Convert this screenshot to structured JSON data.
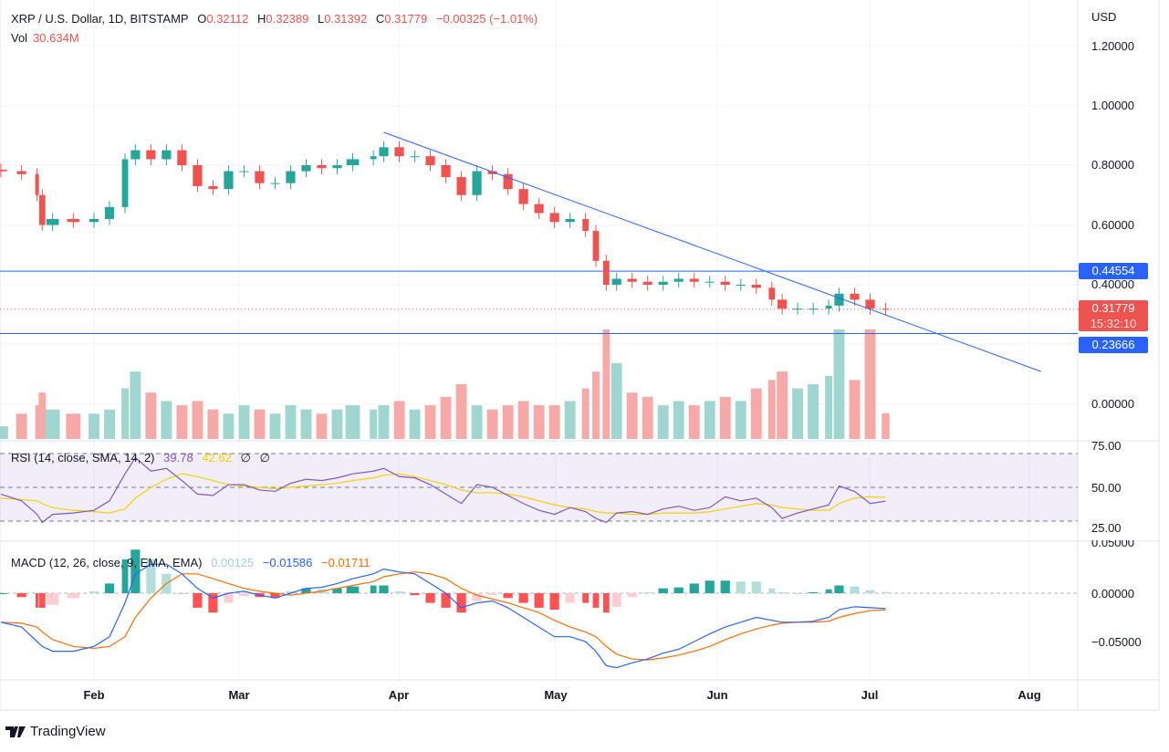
{
  "header": {
    "symbol": "XRP / U.S. Dollar, 1D, BITSTAMP",
    "o_label": "O",
    "open": "0.32112",
    "h_label": "H",
    "high": "0.32389",
    "l_label": "L",
    "low": "0.31392",
    "c_label": "C",
    "close": "0.31779",
    "change": "−0.00325 (−1.01%)",
    "vol_label": "Vol",
    "volume": "30.634M"
  },
  "rsi_legend": {
    "label": "RSI (14, close, SMA, 14, 2)",
    "rsi": "39.78",
    "sma": "42.62",
    "x1": "∅",
    "x2": "∅"
  },
  "macd_legend": {
    "label": "MACD (12, 26, close, 9, EMA, EMA)",
    "hist": "0.00125",
    "macd": "−0.01586",
    "signal": "−0.01711"
  },
  "price_axis": {
    "currency": "USD",
    "ticks": [
      "1.20000",
      "1.00000",
      "0.80000",
      "0.60000",
      "0.40000",
      "0.00000"
    ]
  },
  "price_tags": {
    "resistance": "0.44554",
    "last": "0.31779",
    "countdown": "15:32:10",
    "support": "0.23666"
  },
  "rsi_axis": [
    "75.00",
    "50.00",
    "25.00"
  ],
  "macd_axis": [
    "0.05000",
    "0.00000",
    "−0.05000"
  ],
  "time_axis": [
    "Feb",
    "Mar",
    "Apr",
    "May",
    "Jun",
    "Jul",
    "Aug"
  ],
  "brand": "TradingView",
  "colors": {
    "up": "#26a69a",
    "down": "#ef5350",
    "line": "#2962ff",
    "rsi": "#7e57c2",
    "rsi_sma": "#f5d000",
    "macd": "#2962ff",
    "signal": "#ff6d00"
  },
  "chart_data": {
    "type": "candlestick",
    "ylim": [
      0,
      1.2
    ],
    "dates": [
      "Jan 14",
      "Jan 18",
      "Jan 21",
      "Jan 22",
      "Jan 24",
      "Jan 28",
      "Feb 1",
      "Feb 4",
      "Feb 7",
      "Feb 9",
      "Feb 12",
      "Feb 15",
      "Feb 18",
      "Feb 21",
      "Feb 24",
      "Feb 27",
      "Mar 2",
      "Mar 5",
      "Mar 8",
      "Mar 11",
      "Mar 14",
      "Mar 17",
      "Mar 20",
      "Mar 23",
      "Mar 27",
      "Mar 29",
      "Apr 1",
      "Apr 4",
      "Apr 7",
      "Apr 10",
      "Apr 13",
      "Apr 16",
      "Apr 19",
      "Apr 22",
      "Apr 25",
      "Apr 28",
      "May 1",
      "May 4",
      "May 7",
      "May 9",
      "May 11",
      "May 13",
      "May 16",
      "May 19",
      "May 22",
      "May 25",
      "May 28",
      "May 31",
      "Jun 3",
      "Jun 6",
      "Jun 9",
      "Jun 12",
      "Jun 14",
      "Jun 17",
      "Jun 20",
      "Jun 23",
      "Jun 25",
      "Jun 28",
      "Jul 1",
      "Jul 4"
    ],
    "close": [
      0.78,
      0.77,
      0.7,
      0.6,
      0.62,
      0.61,
      0.62,
      0.66,
      0.82,
      0.85,
      0.82,
      0.85,
      0.8,
      0.73,
      0.72,
      0.78,
      0.78,
      0.74,
      0.74,
      0.78,
      0.8,
      0.79,
      0.8,
      0.82,
      0.83,
      0.86,
      0.83,
      0.83,
      0.8,
      0.76,
      0.7,
      0.78,
      0.77,
      0.72,
      0.67,
      0.64,
      0.61,
      0.62,
      0.58,
      0.48,
      0.4,
      0.42,
      0.41,
      0.4,
      0.41,
      0.42,
      0.41,
      0.41,
      0.4,
      0.4,
      0.39,
      0.35,
      0.32,
      0.32,
      0.32,
      0.33,
      0.37,
      0.35,
      0.32,
      0.31779
    ],
    "volume_m": [
      15,
      30,
      40,
      55,
      35,
      30,
      30,
      35,
      60,
      80,
      55,
      45,
      40,
      45,
      35,
      30,
      40,
      35,
      30,
      40,
      35,
      30,
      35,
      40,
      35,
      40,
      45,
      35,
      40,
      50,
      65,
      40,
      35,
      40,
      45,
      40,
      40,
      45,
      60,
      80,
      130,
      90,
      55,
      50,
      40,
      45,
      40,
      45,
      50,
      45,
      60,
      70,
      80,
      60,
      65,
      75,
      130,
      70,
      130,
      30.634
    ],
    "rsi": [
      45,
      40,
      30,
      24,
      30,
      31,
      33,
      40,
      60,
      72,
      62,
      64,
      55,
      45,
      44,
      52,
      52,
      48,
      47,
      53,
      56,
      55,
      57,
      60,
      62,
      64,
      58,
      57,
      52,
      45,
      38,
      52,
      50,
      44,
      38,
      33,
      30,
      35,
      32,
      27,
      24,
      31,
      32,
      30,
      34,
      36,
      33,
      35,
      43,
      40,
      42,
      35,
      27,
      31,
      34,
      37,
      51,
      47,
      38,
      39.78
    ],
    "rsi_sma": [
      42,
      41,
      40,
      38,
      35,
      33,
      32,
      31,
      34,
      42,
      50,
      56,
      60,
      58,
      55,
      52,
      51,
      50,
      49,
      50,
      51,
      52,
      53,
      55,
      57,
      59,
      60,
      58,
      55,
      52,
      48,
      46,
      46,
      45,
      43,
      40,
      37,
      35,
      34,
      32,
      31,
      31,
      30,
      30,
      31,
      31,
      31,
      32,
      34,
      36,
      38,
      37,
      35,
      34,
      33,
      33,
      38,
      42,
      43,
      42.62
    ],
    "macd": [
      -0.03,
      -0.035,
      -0.05,
      -0.055,
      -0.06,
      -0.06,
      -0.055,
      -0.045,
      -0.01,
      0.02,
      0.03,
      0.03,
      0.02,
      0.005,
      -0.005,
      0,
      0.002,
      -0.002,
      -0.005,
      0,
      0.005,
      0.006,
      0.01,
      0.015,
      0.02,
      0.025,
      0.022,
      0.02,
      0.01,
      0,
      -0.015,
      -0.01,
      -0.008,
      -0.015,
      -0.025,
      -0.035,
      -0.045,
      -0.045,
      -0.05,
      -0.06,
      -0.075,
      -0.077,
      -0.072,
      -0.068,
      -0.062,
      -0.058,
      -0.05,
      -0.042,
      -0.035,
      -0.03,
      -0.025,
      -0.028,
      -0.03,
      -0.03,
      -0.029,
      -0.025,
      -0.017,
      -0.014,
      -0.015,
      -0.01586
    ],
    "signal": [
      -0.03,
      -0.031,
      -0.035,
      -0.04,
      -0.048,
      -0.055,
      -0.057,
      -0.055,
      -0.045,
      -0.025,
      -0.005,
      0.01,
      0.02,
      0.02,
      0.015,
      0.01,
      0.005,
      0.002,
      0,
      -0.002,
      0,
      0.002,
      0.005,
      0.008,
      0.012,
      0.017,
      0.02,
      0.022,
      0.02,
      0.015,
      0.005,
      -0.002,
      -0.006,
      -0.01,
      -0.015,
      -0.02,
      -0.028,
      -0.035,
      -0.04,
      -0.045,
      -0.055,
      -0.063,
      -0.068,
      -0.069,
      -0.067,
      -0.064,
      -0.06,
      -0.055,
      -0.048,
      -0.042,
      -0.037,
      -0.033,
      -0.031,
      -0.03,
      -0.03,
      -0.029,
      -0.025,
      -0.021,
      -0.018,
      -0.01711
    ],
    "trendline": {
      "start": {
        "date": "Mar 29",
        "price": 0.91
      },
      "end": {
        "date": "Aug 3",
        "price": 0.11
      }
    },
    "hlines": [
      0.44554,
      0.23666
    ],
    "rsi_bands": [
      75,
      50,
      25
    ]
  }
}
